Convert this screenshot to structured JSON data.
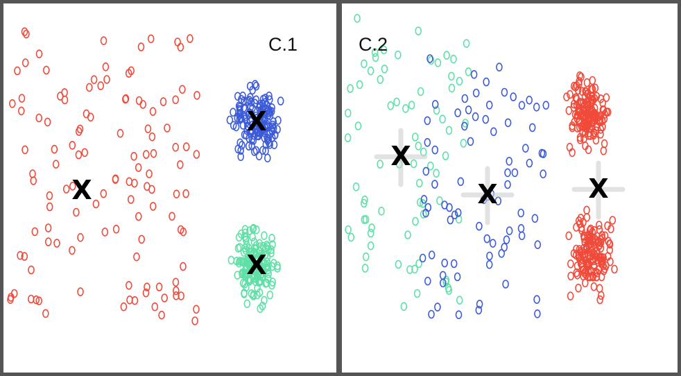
{
  "panels": [
    {
      "label": "C.1",
      "centroids": [
        {
          "cluster": "red",
          "glyph": "X"
        },
        {
          "cluster": "blue",
          "glyph": "X"
        },
        {
          "cluster": "green",
          "glyph": "X"
        }
      ]
    },
    {
      "label": "C.2",
      "centroids": [
        {
          "cluster": "green",
          "glyph": "X"
        },
        {
          "cluster": "blue",
          "glyph": "X"
        },
        {
          "cluster": "red",
          "glyph": "X"
        }
      ]
    }
  ],
  "colors": {
    "red": "#f04a3a",
    "blue": "#3b5bd9",
    "green": "#5fe0a6",
    "border": "#555555"
  }
}
